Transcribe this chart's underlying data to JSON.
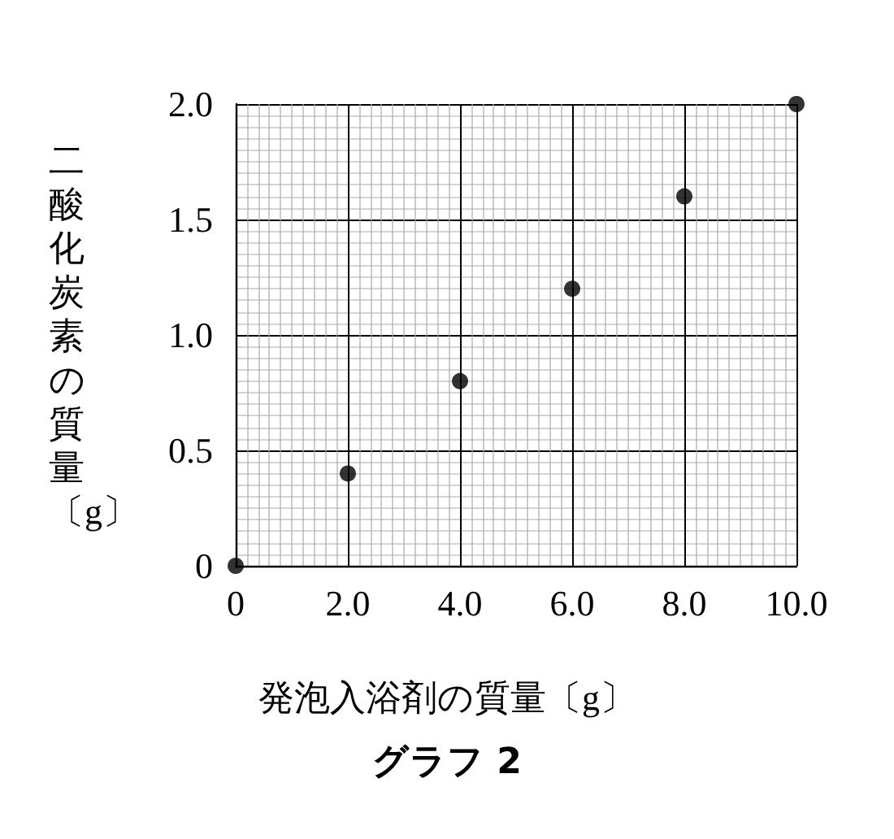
{
  "chart_data": {
    "type": "scatter",
    "title": "グラフ 2",
    "xlabel": "発泡入浴剤の質量〔g〕",
    "ylabel": "二酸化炭素の質量〔g〕",
    "x": [
      0,
      2,
      4,
      6,
      8,
      10
    ],
    "series": [
      {
        "color": "#000000",
        "values": [
          0,
          0.4,
          0.8,
          1.2,
          1.6,
          2.0
        ]
      }
    ],
    "xlim": [
      0,
      10
    ],
    "xticks": [
      0,
      {
        "value": 2,
        "label": "2.0"
      },
      {
        "value": 4,
        "label": "4.0"
      },
      {
        "value": 6,
        "label": "6.0"
      },
      {
        "value": 8,
        "label": "8.0"
      },
      {
        "value": 10,
        "label": "10.0"
      }
    ],
    "ylim": [
      0,
      2
    ],
    "yticks": [
      0,
      0.5,
      {
        "value": 1,
        "label": "1.0"
      },
      1.5,
      {
        "value": 2,
        "label": "2.0"
      }
    ],
    "grid": true,
    "marker": "circle"
  }
}
